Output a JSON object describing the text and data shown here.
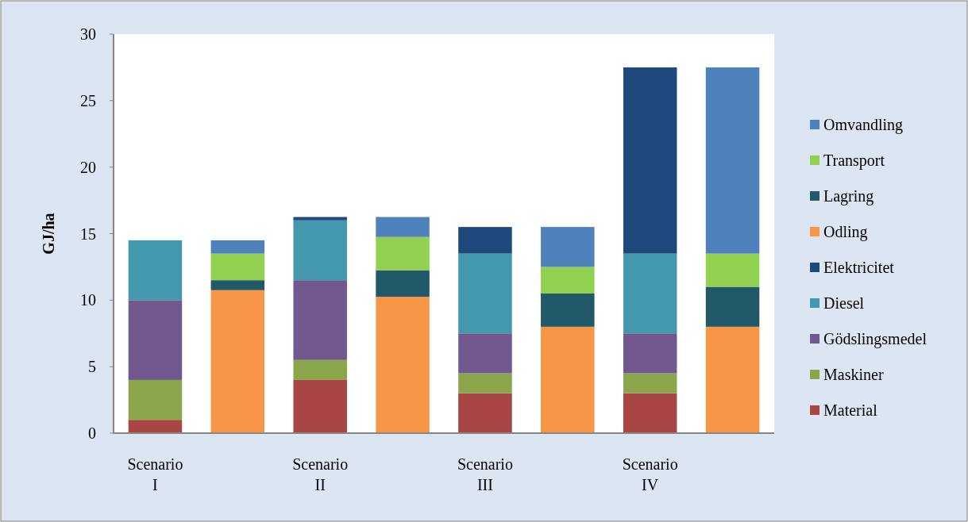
{
  "chart_data": {
    "type": "bar",
    "stacked": true,
    "ylabel": "GJ/ha",
    "categories": [
      "Scenario I",
      null,
      "Scenario II",
      null,
      "Scenario III",
      null,
      "Scenario IV",
      null
    ],
    "ylim": [
      0,
      30
    ],
    "yticks": [
      0,
      5,
      10,
      15,
      20,
      25,
      30
    ],
    "grid": false,
    "legend": "right",
    "series": [
      {
        "name": "Material",
        "color": "#a94643",
        "values": [
          1,
          0,
          4,
          0,
          3,
          0,
          3,
          0
        ]
      },
      {
        "name": "Maskiner",
        "color": "#8ba54a",
        "values": [
          3,
          0,
          1.5,
          0,
          1.5,
          0,
          1.5,
          0
        ]
      },
      {
        "name": "Gödslingsmedel",
        "color": "#71588f",
        "values": [
          6,
          0,
          6,
          0,
          3,
          0,
          3,
          0
        ]
      },
      {
        "name": "Diesel",
        "color": "#4398ae",
        "values": [
          4.5,
          0,
          4.5,
          0,
          6,
          0,
          6,
          0
        ]
      },
      {
        "name": "Elektricitet",
        "color": "#1f497d",
        "values": [
          0,
          0,
          0.25,
          0,
          2,
          0,
          14,
          0
        ]
      },
      {
        "name": "Odling",
        "color": "#f79646",
        "values": [
          0,
          10.75,
          0,
          10.25,
          0,
          8,
          0,
          8
        ]
      },
      {
        "name": "Lagring",
        "color": "#215968",
        "values": [
          0,
          0.75,
          0,
          2,
          0,
          2.5,
          0,
          3
        ]
      },
      {
        "name": "Transport",
        "color": "#92d050",
        "values": [
          0,
          2,
          0,
          2.5,
          0,
          2,
          0,
          2.5
        ]
      },
      {
        "name": "Omvandling",
        "color": "#4f81bd",
        "values": [
          0,
          1,
          0,
          1.5,
          0,
          3,
          0,
          14
        ]
      }
    ]
  }
}
